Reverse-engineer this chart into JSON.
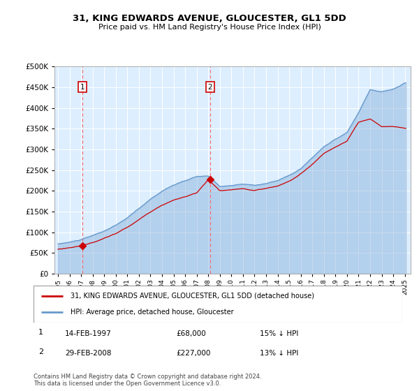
{
  "title1": "31, KING EDWARDS AVENUE, GLOUCESTER, GL1 5DD",
  "title2": "Price paid vs. HM Land Registry's House Price Index (HPI)",
  "legend_line1": "31, KING EDWARDS AVENUE, GLOUCESTER, GL1 5DD (detached house)",
  "legend_line2": "HPI: Average price, detached house, Gloucester",
  "annotation1_label": "1",
  "annotation1_date": "14-FEB-1997",
  "annotation1_price": "£68,000",
  "annotation1_hpi": "15% ↓ HPI",
  "annotation2_label": "2",
  "annotation2_date": "29-FEB-2008",
  "annotation2_price": "£227,000",
  "annotation2_hpi": "13% ↓ HPI",
  "footer": "Contains HM Land Registry data © Crown copyright and database right 2024.\nThis data is licensed under the Open Government Licence v3.0.",
  "price_color": "#cc0000",
  "hpi_color": "#6699cc",
  "fig_bg": "#ffffff",
  "plot_bg_color": "#ddeeff",
  "grid_color": "#ffffff",
  "ylim": [
    0,
    500000
  ],
  "yticks": [
    0,
    50000,
    100000,
    150000,
    200000,
    250000,
    300000,
    350000,
    400000,
    450000,
    500000
  ],
  "sale1_year": 1997.12,
  "sale1_price": 68000,
  "sale2_year": 2008.17,
  "sale2_price": 227000,
  "xlim_min": 1994.7,
  "xlim_max": 2025.5
}
